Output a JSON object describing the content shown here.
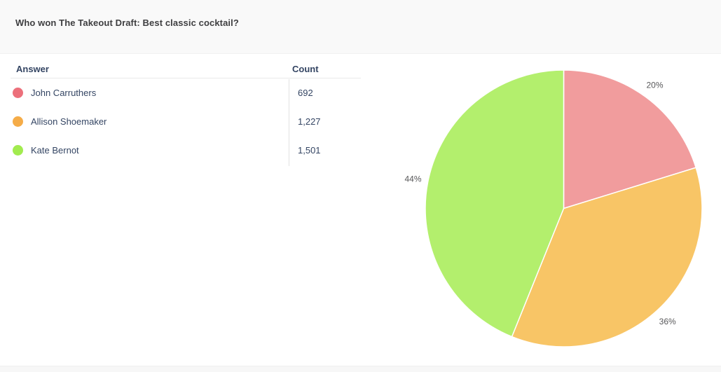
{
  "page": {
    "title": "Who won The Takeout Draft: Best classic cocktail?"
  },
  "table": {
    "columns": [
      "Answer",
      "Count"
    ],
    "rows": [
      {
        "answer": "John Carruthers",
        "count": "692",
        "color": "#EC707B"
      },
      {
        "answer": "Allison Shoemaker",
        "count": "1,227",
        "color": "#F5AC48"
      },
      {
        "answer": "Kate Bernot",
        "count": "1,501",
        "color": "#A2EB4F"
      }
    ]
  },
  "chart_data": {
    "type": "pie",
    "title": "Who won The Takeout Draft: Best classic cocktail?",
    "categories": [
      "John Carruthers",
      "Allison Shoemaker",
      "Kate Bernot"
    ],
    "values": [
      692,
      1227,
      1501
    ],
    "percent_labels": [
      "20%",
      "36%",
      "44%"
    ],
    "slice_colors": [
      "#F19C9D",
      "#F8C566",
      "#B3EF6D"
    ],
    "legend_colors": [
      "#EC707B",
      "#F5AC48",
      "#A2EB4F"
    ],
    "start_angle_deg": 0,
    "direction": "clockwise",
    "stroke": "#FFFFFF",
    "label_color": "#58585A",
    "legend_position": "table-left"
  },
  "colors": {
    "header_bg": "#F9F9F9",
    "bottom_strip_bg": "#F7F7F7",
    "table_text": "#344563",
    "title_text": "#3E3E40",
    "divider": "#E2E2E2"
  }
}
